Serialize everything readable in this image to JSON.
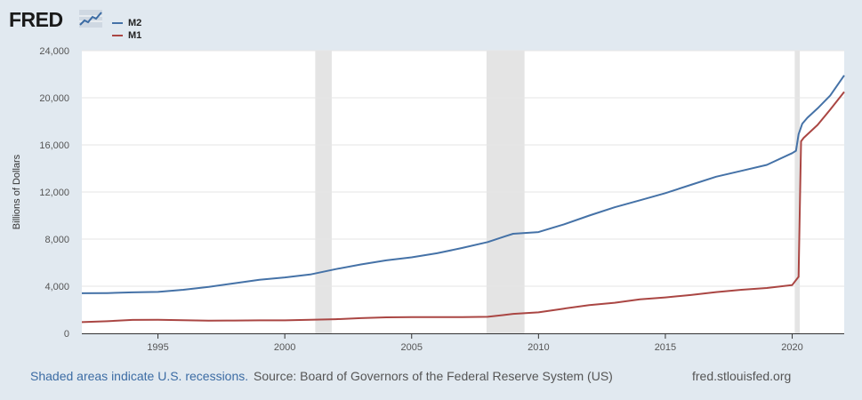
{
  "header": {
    "logo_text": "FRED",
    "logo_graph_icon": "line-chart-icon"
  },
  "legend": [
    {
      "name": "M2",
      "color": "#4572a7"
    },
    {
      "name": "M1",
      "color": "#aa4643"
    }
  ],
  "footer": {
    "shaded_note": "Shaded areas indicate U.S. recessions.",
    "source": "Source: Board of Governors of the Federal Reserve System (US)",
    "site": "fred.stlouisfed.org"
  },
  "chart_data": {
    "type": "line",
    "title": "",
    "xlabel": "",
    "ylabel": "Billions of Dollars",
    "xlim": [
      1992.0,
      2022.05
    ],
    "ylim": [
      0,
      24000
    ],
    "x_ticks": [
      1995,
      2000,
      2005,
      2010,
      2015,
      2020
    ],
    "y_ticks": [
      0,
      4000,
      8000,
      12000,
      16000,
      20000,
      24000
    ],
    "y_tick_labels": [
      "0",
      "4,000",
      "8,000",
      "12,000",
      "16,000",
      "20,000",
      "24,000"
    ],
    "grid": true,
    "legend_position": "top-left",
    "recessions": [
      [
        2001.2,
        2001.85
      ],
      [
        2007.95,
        2009.45
      ],
      [
        2020.1,
        2020.3
      ]
    ],
    "series": [
      {
        "name": "M2",
        "color": "#4572a7",
        "x": [
          1992.0,
          1993.0,
          1994.0,
          1995.0,
          1996.0,
          1997.0,
          1998.0,
          1999.0,
          2000.0,
          2001.0,
          2002.0,
          2003.0,
          2004.0,
          2005.0,
          2006.0,
          2007.0,
          2008.0,
          2008.7,
          2009.0,
          2010.0,
          2011.0,
          2012.0,
          2013.0,
          2014.0,
          2015.0,
          2016.0,
          2017.0,
          2018.0,
          2019.0,
          2020.0,
          2020.15,
          2020.25,
          2020.4,
          2020.6,
          2021.0,
          2021.5,
          2022.05
        ],
        "values": [
          3400,
          3420,
          3480,
          3520,
          3700,
          3950,
          4250,
          4550,
          4750,
          5000,
          5450,
          5850,
          6200,
          6450,
          6800,
          7250,
          7750,
          8250,
          8450,
          8600,
          9250,
          10000,
          10700,
          11300,
          11900,
          12600,
          13300,
          13800,
          14300,
          15300,
          15500,
          16900,
          17800,
          18300,
          19100,
          20200,
          21900
        ]
      },
      {
        "name": "M1",
        "color": "#aa4643",
        "x": [
          1992.0,
          1993.0,
          1994.0,
          1995.0,
          1996.0,
          1997.0,
          1998.0,
          1999.0,
          2000.0,
          2001.0,
          2002.0,
          2003.0,
          2004.0,
          2005.0,
          2006.0,
          2007.0,
          2008.0,
          2008.6,
          2009.0,
          2010.0,
          2011.0,
          2012.0,
          2013.0,
          2014.0,
          2015.0,
          2016.0,
          2017.0,
          2018.0,
          2019.0,
          2020.0,
          2020.25,
          2020.35,
          2020.45,
          2021.0,
          2021.5,
          2022.05
        ],
        "values": [
          950,
          1030,
          1140,
          1150,
          1120,
          1070,
          1090,
          1100,
          1100,
          1150,
          1200,
          1290,
          1360,
          1380,
          1380,
          1380,
          1400,
          1550,
          1650,
          1780,
          2100,
          2400,
          2600,
          2880,
          3050,
          3250,
          3500,
          3700,
          3850,
          4100,
          4800,
          16300,
          16600,
          17700,
          19000,
          20500
        ]
      }
    ]
  }
}
